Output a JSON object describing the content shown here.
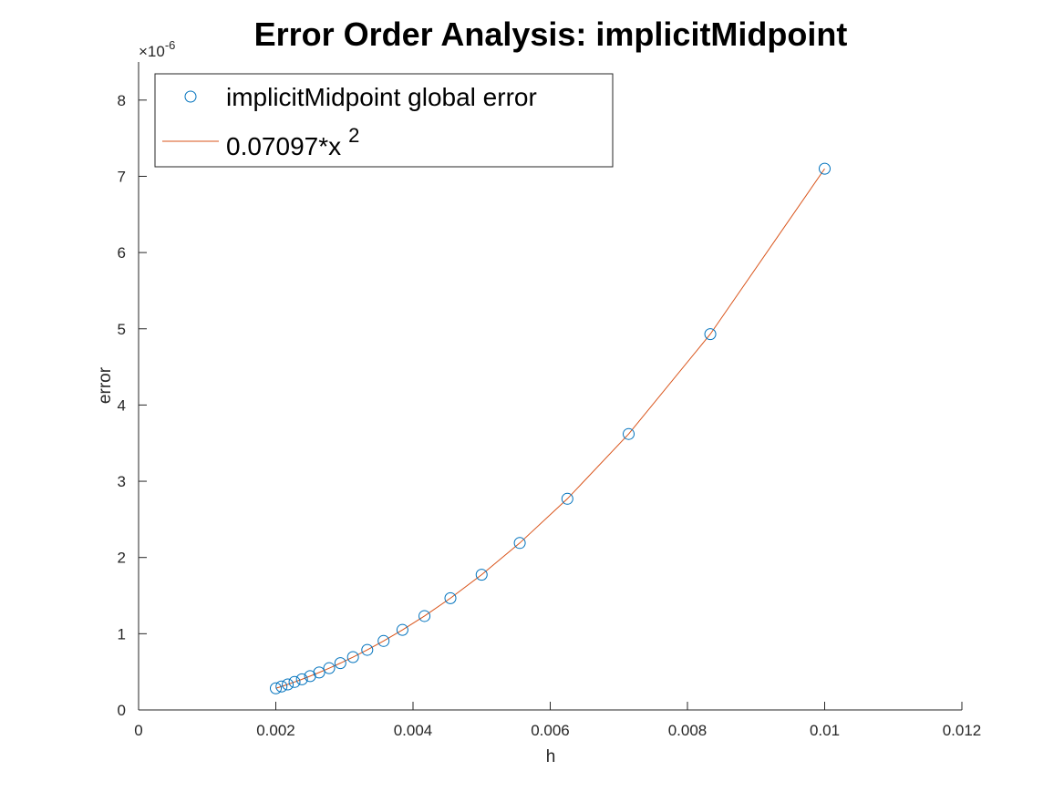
{
  "chart_data": {
    "type": "scatter",
    "title": "Error Order Analysis: implicitMidpoint",
    "xlabel": "h",
    "ylabel": "error",
    "xlim": [
      0,
      0.012
    ],
    "ylim": [
      0,
      8.5
    ],
    "y_exponent_label": "×10",
    "y_exponent_power": "-6",
    "grid": false,
    "legend_position": "top-left",
    "x_ticks": [
      {
        "value": 0,
        "label": "0"
      },
      {
        "value": 0.002,
        "label": "0.002"
      },
      {
        "value": 0.004,
        "label": "0.004"
      },
      {
        "value": 0.006,
        "label": "0.006"
      },
      {
        "value": 0.008,
        "label": "0.008"
      },
      {
        "value": 0.01,
        "label": "0.01"
      },
      {
        "value": 0.012,
        "label": "0.012"
      }
    ],
    "y_ticks": [
      {
        "value": 0,
        "label": "0"
      },
      {
        "value": 1,
        "label": "1"
      },
      {
        "value": 2,
        "label": "2"
      },
      {
        "value": 3,
        "label": "3"
      },
      {
        "value": 4,
        "label": "4"
      },
      {
        "value": 5,
        "label": "5"
      },
      {
        "value": 6,
        "label": "6"
      },
      {
        "value": 7,
        "label": "7"
      },
      {
        "value": 8,
        "label": "8"
      }
    ],
    "series": [
      {
        "name": "implicitMidpoint global error",
        "kind": "markers",
        "color": "#0072BD",
        "x": [
          0.01,
          0.008333,
          0.007143,
          0.00625,
          0.005556,
          0.005,
          0.004545,
          0.004167,
          0.003846,
          0.003571,
          0.003333,
          0.003125,
          0.002941,
          0.002778,
          0.002632,
          0.0025,
          0.002381,
          0.002273,
          0.002174,
          0.002083,
          0.002
        ],
        "y": [
          7.1,
          4.93,
          3.62,
          2.77,
          2.19,
          1.774,
          1.466,
          1.232,
          1.05,
          0.905,
          0.788,
          0.693,
          0.614,
          0.548,
          0.492,
          0.444,
          0.402,
          0.367,
          0.335,
          0.308,
          0.284
        ]
      },
      {
        "name": "0.07097*x",
        "name_superscript": "2",
        "kind": "line",
        "color": "#D95319",
        "x": [
          0.002,
          0.002083,
          0.002174,
          0.002273,
          0.002381,
          0.0025,
          0.002632,
          0.002778,
          0.002941,
          0.003125,
          0.003333,
          0.003571,
          0.003846,
          0.004167,
          0.004545,
          0.005,
          0.005556,
          0.00625,
          0.007143,
          0.008333,
          0.01
        ],
        "y": [
          0.284,
          0.308,
          0.335,
          0.367,
          0.402,
          0.444,
          0.492,
          0.548,
          0.614,
          0.693,
          0.788,
          0.905,
          1.05,
          1.232,
          1.466,
          1.774,
          2.19,
          2.77,
          3.62,
          4.93,
          7.1
        ]
      }
    ]
  }
}
